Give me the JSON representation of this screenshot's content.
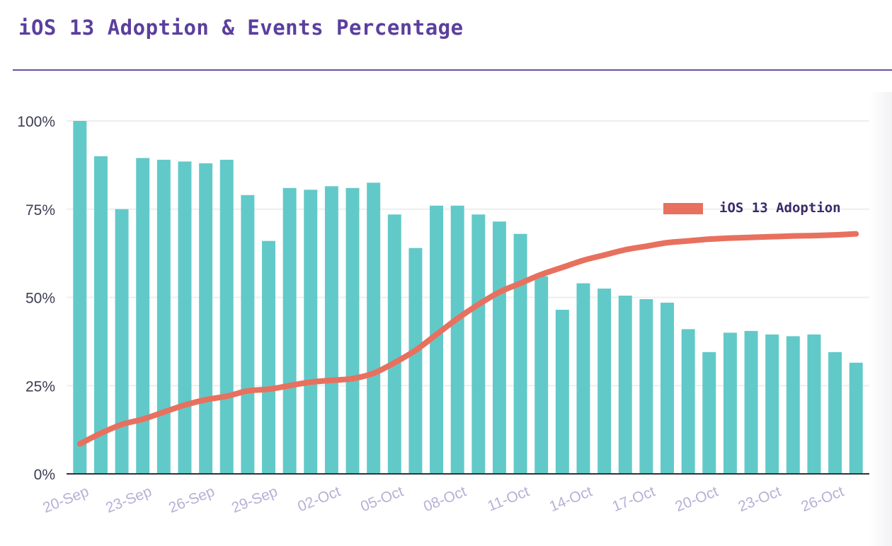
{
  "title": "iOS 13 Adoption & Events Percentage",
  "colors": {
    "bar": "#62c9c9",
    "line": "#e8705e",
    "title": "#5b3f9e",
    "grid": "#eeeeee",
    "tick": "#b7b0d6",
    "ytick": "#3d3d55"
  },
  "chart_data": {
    "type": "bar",
    "title": "iOS 13 Adoption & Events Percentage",
    "xlabel": "",
    "ylabel": "",
    "ylim": [
      0,
      100
    ],
    "yticks": [
      "0%",
      "25%",
      "50%",
      "75%",
      "100%"
    ],
    "ytick_values": [
      0,
      25,
      50,
      75,
      100
    ],
    "categories": [
      "20-Sep",
      "21-Sep",
      "22-Sep",
      "23-Sep",
      "24-Sep",
      "25-Sep",
      "26-Sep",
      "27-Sep",
      "28-Sep",
      "29-Sep",
      "30-Sep",
      "01-Oct",
      "02-Oct",
      "03-Oct",
      "04-Oct",
      "05-Oct",
      "06-Oct",
      "07-Oct",
      "08-Oct",
      "09-Oct",
      "10-Oct",
      "11-Oct",
      "12-Oct",
      "13-Oct",
      "14-Oct",
      "15-Oct",
      "16-Oct",
      "17-Oct",
      "18-Oct",
      "19-Oct",
      "20-Oct",
      "21-Oct",
      "22-Oct",
      "23-Oct",
      "24-Oct",
      "25-Oct",
      "26-Oct",
      "27-Oct"
    ],
    "xtick_labels": [
      "20-Sep",
      "23-Sep",
      "26-Sep",
      "29-Sep",
      "02-Oct",
      "05-Oct",
      "08-Oct",
      "11-Oct",
      "14-Oct",
      "17-Oct",
      "20-Oct",
      "23-Oct",
      "26-Oct"
    ],
    "series": [
      {
        "name": "Events Percentage",
        "type": "bar",
        "values": [
          100,
          90,
          75,
          89.5,
          89,
          88.5,
          88,
          89,
          79,
          66,
          81,
          80.5,
          81.5,
          81,
          82.5,
          73.5,
          64,
          76,
          76,
          73.5,
          71.5,
          68,
          56,
          46.5,
          54,
          52.5,
          50.5,
          49.5,
          48.5,
          41,
          34.5,
          40,
          40.5,
          39.5,
          39,
          39.5,
          34.5,
          31.5
        ]
      },
      {
        "name": "iOS 13 Adoption",
        "type": "line",
        "values": [
          8.5,
          11.5,
          14,
          15.5,
          17.5,
          19.5,
          21,
          22,
          23.5,
          24,
          25,
          26,
          26.5,
          27,
          28.5,
          31.5,
          35,
          39.5,
          44,
          48,
          51.5,
          54,
          56.5,
          58.5,
          60.5,
          62,
          63.5,
          64.5,
          65.5,
          66,
          66.5,
          66.8,
          67,
          67.2,
          67.4,
          67.5,
          67.7,
          68
        ]
      }
    ],
    "legend": {
      "label": "iOS 13 Adoption",
      "position": "top-right"
    }
  }
}
